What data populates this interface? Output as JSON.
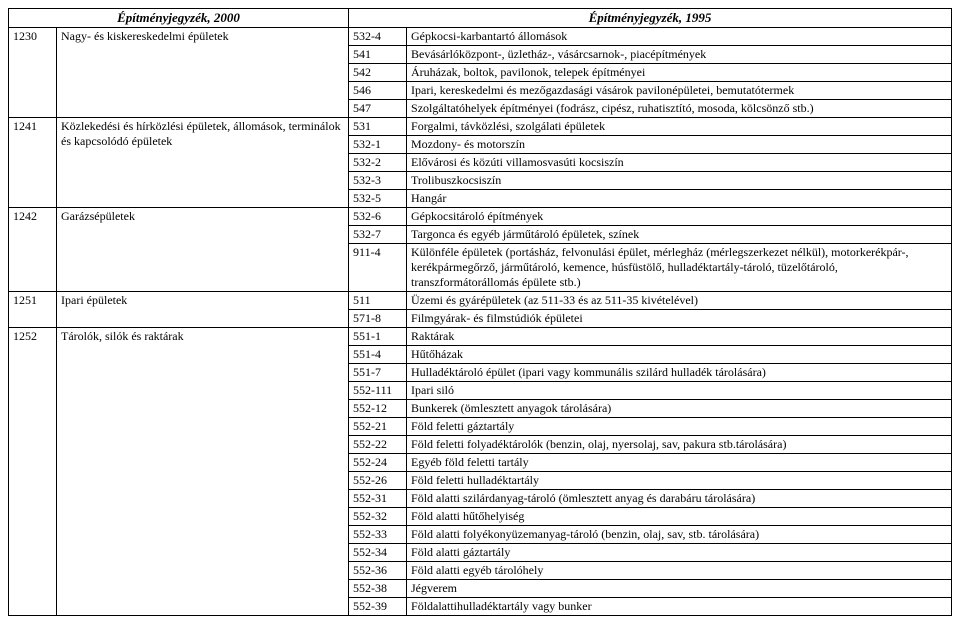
{
  "header": {
    "left": "Építményjegyzék, 2000",
    "right": "Építményjegyzék, 1995"
  },
  "rows": [
    {
      "code_left": "1230",
      "desc_left": "Nagy- és kiskereskedelmi épületek",
      "code_right": "532-4",
      "desc_right": "Gépkocsi-karbantartó állomások"
    },
    {
      "code_left": "",
      "desc_left": "",
      "code_right": "541",
      "desc_right": "Bevásárlóközpont-, üzletház-, vásárcsarnok-, piacépítmények"
    },
    {
      "code_left": "",
      "desc_left": "",
      "code_right": "542",
      "desc_right": "Áruházak, boltok, pavilonok, telepek építményei"
    },
    {
      "code_left": "",
      "desc_left": "",
      "code_right": "546",
      "desc_right": "Ipari, kereskedelmi és mezőgazdasági vásárok pavilonépületei, bemutatótermek"
    },
    {
      "code_left": "",
      "desc_left": "",
      "code_right": "547",
      "desc_right": "Szolgáltatóhelyek építményei (fodrász, cipész, ruhatisztító, mosoda, kölcsönző stb.)"
    },
    {
      "code_left": "1241",
      "desc_left": "Közlekedési és hírközlési épületek, állomások, terminálok és kapcsolódó épületek",
      "code_right": "531",
      "desc_right": "Forgalmi, távközlési, szolgálati épületek"
    },
    {
      "code_left": "",
      "desc_left": "",
      "code_right": "532-1",
      "desc_right": "Mozdony- és motorszín"
    },
    {
      "code_left": "",
      "desc_left": "",
      "code_right": "532-2",
      "desc_right": "Elővárosi és közúti villamosvasúti kocsiszín"
    },
    {
      "code_left": "",
      "desc_left": "",
      "code_right": "532-3",
      "desc_right": "Trolibuszkocsiszín"
    },
    {
      "code_left": "",
      "desc_left": "",
      "code_right": "532-5",
      "desc_right": "Hangár"
    },
    {
      "code_left": "1242",
      "desc_left": "Garázsépületek",
      "code_right": "532-6",
      "desc_right": "Gépkocsitároló építmények"
    },
    {
      "code_left": "",
      "desc_left": "",
      "code_right": "532-7",
      "desc_right": "Targonca és egyéb járműtároló épületek, színek"
    },
    {
      "code_left": "",
      "desc_left": "",
      "code_right": "911-4",
      "desc_right": "Különféle épületek (portásház, felvonulási épület, mérlegház (mérlegszerkezet nélkül), motorkerékpár-, kerékpármegőrző, járműtároló, kemence, húsfüstölő, hulladéktartály-tároló, tüzelőtároló, transzformátorállomás épülete stb.)"
    },
    {
      "code_left": "1251",
      "desc_left": "Ipari épületek",
      "code_right": "511",
      "desc_right": "Üzemi és gyárépületek (az 511-33 és az 511-35 kivételével)"
    },
    {
      "code_left": "",
      "desc_left": "",
      "code_right": "571-8",
      "desc_right": "Filmgyárak- és filmstúdiók épületei"
    },
    {
      "code_left": "1252",
      "desc_left": "Tárolók, silók és raktárak",
      "code_right": "551-1",
      "desc_right": "Raktárak"
    },
    {
      "code_left": "",
      "desc_left": "",
      "code_right": "551-4",
      "desc_right": "Hűtőházak"
    },
    {
      "code_left": "",
      "desc_left": "",
      "code_right": "551-7",
      "desc_right": "Hulladéktároló épület (ipari vagy kommunális szilárd hulladék tárolására)"
    },
    {
      "code_left": "",
      "desc_left": "",
      "code_right": "552-111",
      "desc_right": "Ipari siló"
    },
    {
      "code_left": "",
      "desc_left": "",
      "code_right": "552-12",
      "desc_right": "Bunkerek (ömlesztett anyagok tárolására)"
    },
    {
      "code_left": "",
      "desc_left": "",
      "code_right": "552-21",
      "desc_right": "Föld feletti gáztartály"
    },
    {
      "code_left": "",
      "desc_left": "",
      "code_right": "552-22",
      "desc_right": "Föld feletti folyadéktárolók (benzin, olaj, nyersolaj, sav, pakura stb.tárolására)"
    },
    {
      "code_left": "",
      "desc_left": "",
      "code_right": "552-24",
      "desc_right": "Egyéb föld feletti tartály"
    },
    {
      "code_left": "",
      "desc_left": "",
      "code_right": "552-26",
      "desc_right": "Föld feletti hulladéktartály"
    },
    {
      "code_left": "",
      "desc_left": "",
      "code_right": "552-31",
      "desc_right": "Föld alatti szilárdanyag-tároló (ömlesztett anyag és darabáru tárolására)"
    },
    {
      "code_left": "",
      "desc_left": "",
      "code_right": "552-32",
      "desc_right": "Föld alatti hűtőhelyiség"
    },
    {
      "code_left": "",
      "desc_left": "",
      "code_right": "552-33",
      "desc_right": "Föld alatti folyékonyüzemanyag-tároló (benzin, olaj, sav, stb. tárolására)"
    },
    {
      "code_left": "",
      "desc_left": "",
      "code_right": "552-34",
      "desc_right": "Föld alatti gáztartály"
    },
    {
      "code_left": "",
      "desc_left": "",
      "code_right": "552-36",
      "desc_right": "Föld alatti egyéb tárolóhely"
    },
    {
      "code_left": "",
      "desc_left": "",
      "code_right": "552-38",
      "desc_right": "Jégverem"
    },
    {
      "code_left": "",
      "desc_left": "",
      "code_right": "552-39",
      "desc_right": "Földalattihulladéktartály vagy bunker"
    }
  ],
  "groups": [
    {
      "start": 0,
      "span": 5
    },
    {
      "start": 5,
      "span": 5
    },
    {
      "start": 10,
      "span": 3
    },
    {
      "start": 13,
      "span": 2
    },
    {
      "start": 15,
      "span": 16
    }
  ]
}
